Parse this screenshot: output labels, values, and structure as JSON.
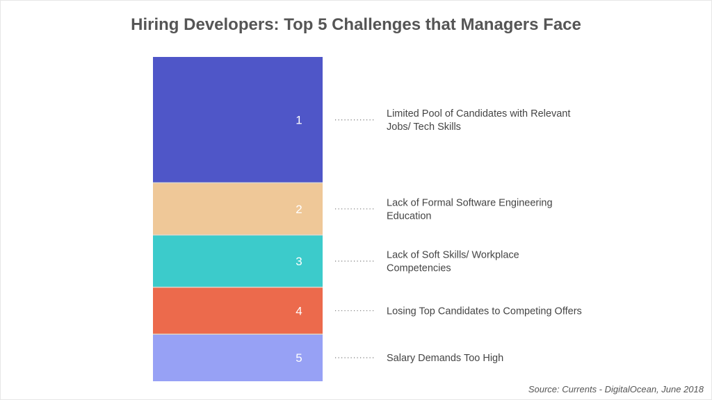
{
  "chart_data": {
    "type": "bar",
    "subtype": "stacked-single-column",
    "title": "Hiring Developers: Top 5 Challenges that Managers Face",
    "categories": [
      "1",
      "2",
      "3",
      "4",
      "5"
    ],
    "labels": [
      [
        "Limited Pool of Candidates with Relevant",
        "Jobs/ Tech Skills"
      ],
      [
        "Lack of Formal Software Engineering",
        "Education"
      ],
      [
        "Lack of Soft Skills/ Workplace",
        "Competencies"
      ],
      [
        "Losing Top Candidates to Competing Offers"
      ],
      [
        "Salary Demands Too High"
      ]
    ],
    "relative_share_percent": [
      38.8,
      16.1,
      16.1,
      14.5,
      14.5
    ],
    "colors": [
      "#4f56c8",
      "#efc898",
      "#3ccbcb",
      "#ec6a4c",
      "#97a1f5"
    ],
    "legend": "right",
    "grid": false,
    "source": "Source: Currents - DigitalOcean, June 2018"
  }
}
